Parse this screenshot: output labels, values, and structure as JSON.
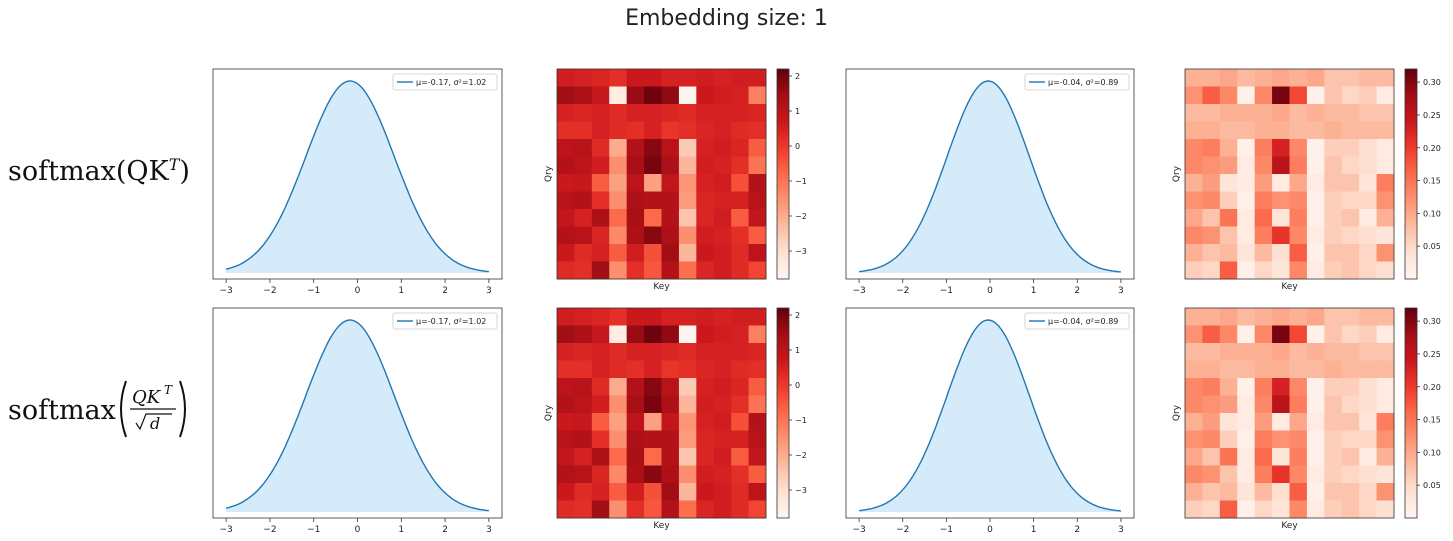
{
  "figure": {
    "title": "Embedding size: 1",
    "row_labels": [
      "softmax(QK",
      "softmax"
    ]
  },
  "chart_data": [
    {
      "type": "area",
      "panel": "row1-col1",
      "legend": "μ=-0.17, σ²=1.02",
      "legend_position": "top-right",
      "xticks": [
        -3,
        -2,
        -1,
        0,
        1,
        2,
        3
      ],
      "xlim": [
        -3,
        3
      ],
      "mean": -0.17,
      "variance": 1.02,
      "line_color": "#1f77b4",
      "fill_color": "#d6ebfa"
    },
    {
      "type": "heatmap",
      "panel": "row1-col2",
      "xlabel": "Key",
      "ylabel": "Qry",
      "colorbar_ticks": [
        2,
        1,
        0,
        -1,
        -2,
        -3
      ],
      "clim": [
        -3.8,
        2.2
      ],
      "cmap": "Reds"
    },
    {
      "type": "area",
      "panel": "row1-col3",
      "legend": "μ=-0.04, σ²=0.89",
      "legend_position": "top-right",
      "xticks": [
        -3,
        -2,
        -1,
        0,
        1,
        2,
        3
      ],
      "xlim": [
        -3,
        3
      ],
      "mean": -0.04,
      "variance": 0.89,
      "line_color": "#1f77b4",
      "fill_color": "#d6ebfa"
    },
    {
      "type": "heatmap",
      "panel": "row1-col4",
      "xlabel": "Key",
      "ylabel": "Qry",
      "colorbar_ticks": [
        0.3,
        0.25,
        0.2,
        0.15,
        0.1,
        0.05
      ],
      "clim": [
        0.0,
        0.32
      ],
      "cmap": "Reds"
    },
    {
      "type": "area",
      "panel": "row2-col1",
      "legend": "μ=-0.17, σ²=1.02",
      "legend_position": "top-right",
      "xticks": [
        -3,
        -2,
        -1,
        0,
        1,
        2,
        3
      ],
      "xlim": [
        -3,
        3
      ],
      "mean": -0.17,
      "variance": 1.02,
      "line_color": "#1f77b4",
      "fill_color": "#d6ebfa"
    },
    {
      "type": "heatmap",
      "panel": "row2-col2",
      "xlabel": "Key",
      "ylabel": "Qry",
      "colorbar_ticks": [
        2,
        1,
        0,
        -1,
        -2,
        -3
      ],
      "clim": [
        -3.8,
        2.2
      ],
      "cmap": "Reds"
    },
    {
      "type": "area",
      "panel": "row2-col3",
      "legend": "μ=-0.04, σ²=0.89",
      "legend_position": "top-right",
      "xticks": [
        -3,
        -2,
        -1,
        0,
        1,
        2,
        3
      ],
      "xlim": [
        -3,
        3
      ],
      "mean": -0.04,
      "variance": 0.89,
      "line_color": "#1f77b4",
      "fill_color": "#d6ebfa"
    },
    {
      "type": "heatmap",
      "panel": "row2-col4",
      "xlabel": "Key",
      "ylabel": "Qry",
      "colorbar_ticks": [
        0.3,
        0.25,
        0.2,
        0.15,
        0.1,
        0.05
      ],
      "clim": [
        0.0,
        0.32
      ],
      "cmap": "Reds"
    }
  ],
  "heatmap_values": {
    "logits": [
      [
        0.6,
        0.5,
        0.4,
        0.2,
        0.7,
        0.7,
        0.5,
        0.5,
        0.6,
        0.5,
        0.6,
        0.6
      ],
      [
        1.5,
        1.3,
        0.8,
        -3.5,
        1.6,
        2.1,
        1.7,
        -3.8,
        0.7,
        0.6,
        0.5,
        -1.2
      ],
      [
        0.5,
        0.4,
        0.5,
        0.3,
        0.5,
        0.5,
        0.4,
        0.3,
        0.5,
        0.5,
        0.5,
        0.4
      ],
      [
        0.2,
        0.2,
        0.5,
        0.3,
        0.2,
        0.5,
        0.1,
        0.2,
        0.4,
        0.5,
        0.3,
        0.2
      ],
      [
        1.0,
        1.1,
        0.3,
        -2.0,
        1.2,
        1.8,
        1.1,
        -2.6,
        0.5,
        0.6,
        0.4,
        -0.6
      ],
      [
        1.2,
        1.0,
        0.6,
        -1.5,
        1.4,
        2.0,
        1.3,
        -2.2,
        0.6,
        0.5,
        0.2,
        -1.0
      ],
      [
        0.7,
        0.8,
        -0.6,
        -1.8,
        1.0,
        -1.8,
        0.9,
        -1.6,
        0.5,
        0.6,
        -0.4,
        1.2
      ],
      [
        1.1,
        1.2,
        0.2,
        -1.5,
        1.3,
        1.2,
        1.2,
        -1.7,
        0.4,
        0.5,
        0.5,
        1.1
      ],
      [
        0.9,
        0.5,
        1.3,
        -0.8,
        1.4,
        -0.8,
        1.2,
        -2.5,
        0.4,
        0.6,
        -0.6,
        0.9
      ],
      [
        1.2,
        1.1,
        0.4,
        -1.4,
        1.3,
        1.8,
        1.3,
        -1.5,
        0.6,
        0.5,
        0.2,
        -0.6
      ],
      [
        0.7,
        0.3,
        0.5,
        -0.6,
        0.6,
        -0.4,
        1.5,
        -2.2,
        0.7,
        0.6,
        0.3,
        1.0
      ],
      [
        0.3,
        0.2,
        1.5,
        -1.5,
        0.2,
        -0.5,
        1.2,
        -0.9,
        0.4,
        0.6,
        0.3,
        -0.2
      ]
    ],
    "probs": [
      [
        0.09,
        0.09,
        0.1,
        0.08,
        0.09,
        0.1,
        0.09,
        0.1,
        0.07,
        0.07,
        0.08,
        0.08
      ],
      [
        0.12,
        0.17,
        0.13,
        0.01,
        0.13,
        0.31,
        0.19,
        0.01,
        0.07,
        0.05,
        0.06,
        0.02
      ],
      [
        0.08,
        0.08,
        0.09,
        0.09,
        0.09,
        0.1,
        0.08,
        0.09,
        0.08,
        0.08,
        0.07,
        0.07
      ],
      [
        0.09,
        0.09,
        0.08,
        0.08,
        0.09,
        0.09,
        0.08,
        0.08,
        0.09,
        0.08,
        0.08,
        0.08
      ],
      [
        0.13,
        0.14,
        0.09,
        0.01,
        0.14,
        0.23,
        0.13,
        0.01,
        0.06,
        0.06,
        0.04,
        0.02
      ],
      [
        0.13,
        0.12,
        0.11,
        0.02,
        0.13,
        0.26,
        0.14,
        0.01,
        0.07,
        0.05,
        0.04,
        0.02
      ],
      [
        0.09,
        0.11,
        0.03,
        0.02,
        0.11,
        0.02,
        0.1,
        0.02,
        0.07,
        0.07,
        0.03,
        0.14
      ],
      [
        0.12,
        0.13,
        0.06,
        0.01,
        0.14,
        0.12,
        0.13,
        0.01,
        0.06,
        0.05,
        0.05,
        0.12
      ],
      [
        0.1,
        0.07,
        0.15,
        0.02,
        0.16,
        0.03,
        0.14,
        0.01,
        0.06,
        0.07,
        0.02,
        0.09
      ],
      [
        0.13,
        0.12,
        0.07,
        0.02,
        0.14,
        0.21,
        0.13,
        0.02,
        0.06,
        0.05,
        0.04,
        0.03
      ],
      [
        0.09,
        0.07,
        0.08,
        0.03,
        0.08,
        0.04,
        0.17,
        0.01,
        0.07,
        0.07,
        0.05,
        0.12
      ],
      [
        0.06,
        0.05,
        0.17,
        0.01,
        0.05,
        0.03,
        0.13,
        0.02,
        0.06,
        0.07,
        0.05,
        0.04
      ]
    ]
  }
}
